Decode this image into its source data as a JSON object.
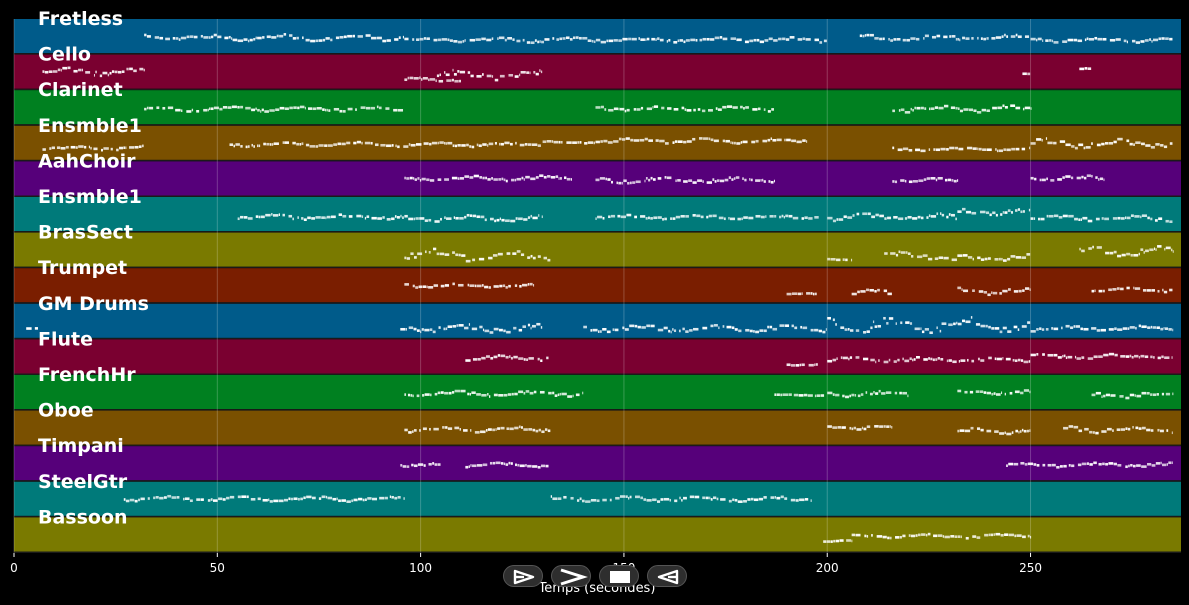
{
  "chart_data": {
    "type": "piano-roll",
    "xlabel": "Temps (secondes)",
    "xlim": [
      0,
      287
    ],
    "xticks": [
      0,
      50,
      100,
      150,
      200,
      250
    ],
    "grid": true,
    "tracks": [
      {
        "name": "Fretless",
        "color": "#005b8a",
        "pitch_range": [
          40,
          52
        ],
        "segments": [
          [
            32,
            96,
            46,
            1.6
          ],
          [
            96,
            200,
            45,
            1.2
          ],
          [
            208,
            250,
            46,
            1.4
          ],
          [
            250,
            285,
            45,
            1.2
          ]
        ]
      },
      {
        "name": "Cello",
        "color": "#7a0030",
        "pitch_range": [
          40,
          56
        ],
        "segments": [
          [
            7,
            32,
            49,
            2.5
          ],
          [
            96,
            110,
            44,
            1.2
          ],
          [
            104,
            130,
            47,
            3.0
          ],
          [
            248,
            250,
            48,
            0.5
          ],
          [
            262,
            265,
            51,
            0.5
          ]
        ]
      },
      {
        "name": "Clarinet",
        "color": "#008020",
        "pitch_range": [
          52,
          64
        ],
        "segments": [
          [
            32,
            96,
            58,
            1.2
          ],
          [
            143,
            187,
            58,
            1.2
          ],
          [
            216,
            250,
            58,
            1.6
          ]
        ]
      },
      {
        "name": "Ensmble1",
        "color": "#7a5000",
        "pitch_range": [
          40,
          62
        ],
        "segments": [
          [
            7,
            32,
            48,
            2.0
          ],
          [
            53,
            130,
            51,
            2.0
          ],
          [
            130,
            143,
            53,
            1.0
          ],
          [
            143,
            195,
            54,
            2.4
          ],
          [
            216,
            250,
            47,
            1.6
          ],
          [
            250,
            285,
            52,
            4.0
          ]
        ]
      },
      {
        "name": "AahChoir",
        "color": "#56007a",
        "pitch_range": [
          50,
          64
        ],
        "segments": [
          [
            96,
            137,
            58,
            1.4
          ],
          [
            143,
            187,
            57,
            1.6
          ],
          [
            216,
            232,
            57,
            1.2
          ],
          [
            250,
            268,
            58,
            1.6
          ]
        ]
      },
      {
        "name": "Ensmble1",
        "color": "#007a7a",
        "pitch_range": [
          48,
          68
        ],
        "segments": [
          [
            55,
            96,
            57,
            2.0
          ],
          [
            96,
            130,
            56,
            2.5
          ],
          [
            143,
            198,
            57,
            1.6
          ],
          [
            200,
            232,
            57,
            3.0
          ],
          [
            232,
            250,
            61,
            2.5
          ],
          [
            250,
            285,
            56,
            2.5
          ]
        ]
      },
      {
        "name": "BrasSect",
        "color": "#7a7a00",
        "pitch_range": [
          52,
          68
        ],
        "segments": [
          [
            96,
            132,
            58,
            4.0
          ],
          [
            200,
            206,
            55,
            0.8
          ],
          [
            214,
            232,
            57,
            3.5
          ],
          [
            232,
            250,
            56,
            2.0
          ],
          [
            262,
            285,
            60,
            3.0
          ]
        ]
      },
      {
        "name": "Trumpet",
        "color": "#7a1e00",
        "pitch_range": [
          52,
          70
        ],
        "segments": [
          [
            96,
            128,
            62,
            1.6
          ],
          [
            190,
            198,
            56,
            0.5
          ],
          [
            206,
            216,
            57,
            2.0
          ],
          [
            232,
            250,
            58,
            2.5
          ],
          [
            265,
            285,
            59,
            1.5
          ]
        ]
      },
      {
        "name": "GM Drums",
        "color": "#005b8a",
        "pitch_range": [
          30,
          60
        ],
        "segments": [
          [
            3,
            6,
            38,
            0.5
          ],
          [
            95,
            130,
            38,
            5.0
          ],
          [
            140,
            200,
            38,
            4.0
          ],
          [
            200,
            250,
            42,
            9.0
          ],
          [
            250,
            285,
            38,
            3.0
          ]
        ]
      },
      {
        "name": "Flute",
        "color": "#7a0030",
        "pitch_range": [
          62,
          78
        ],
        "segments": [
          [
            111,
            132,
            70,
            1.6
          ],
          [
            190,
            198,
            66,
            0.5
          ],
          [
            200,
            250,
            69,
            1.6
          ],
          [
            250,
            285,
            71,
            1.6
          ]
        ]
      },
      {
        "name": "FrenchHr",
        "color": "#008020",
        "pitch_range": [
          48,
          66
        ],
        "segments": [
          [
            96,
            140,
            57,
            2.0
          ],
          [
            187,
            200,
            56,
            0.5
          ],
          [
            200,
            220,
            57,
            2.0
          ],
          [
            232,
            250,
            58,
            1.6
          ],
          [
            265,
            285,
            56,
            2.0
          ]
        ]
      },
      {
        "name": "Oboe",
        "color": "#7a5000",
        "pitch_range": [
          58,
          72
        ],
        "segments": [
          [
            96,
            132,
            65,
            1.6
          ],
          [
            200,
            216,
            66,
            1.2
          ],
          [
            232,
            250,
            64,
            1.6
          ],
          [
            258,
            285,
            65,
            2.0
          ]
        ]
      },
      {
        "name": "Timpani",
        "color": "#56007a",
        "pitch_range": [
          36,
          48
        ],
        "segments": [
          [
            95,
            105,
            42,
            0.8
          ],
          [
            111,
            132,
            42,
            1.0
          ],
          [
            244,
            285,
            42,
            1.0
          ]
        ]
      },
      {
        "name": "SteelGtr",
        "color": "#007a7a",
        "pitch_range": [
          48,
          64
        ],
        "segments": [
          [
            27,
            96,
            57,
            1.6
          ],
          [
            132,
            196,
            57,
            1.6
          ]
        ]
      },
      {
        "name": "Bassoon",
        "color": "#7a7a00",
        "pitch_range": [
          36,
          52
        ],
        "segments": [
          [
            199,
            206,
            41,
            0.5
          ],
          [
            206,
            250,
            44,
            1.2
          ]
        ]
      }
    ]
  },
  "controls": {
    "play_icon": "play-icon",
    "forward_icon": "forward-icon",
    "stop_icon": "stop-icon",
    "reverse_icon": "reverse-play-icon"
  }
}
